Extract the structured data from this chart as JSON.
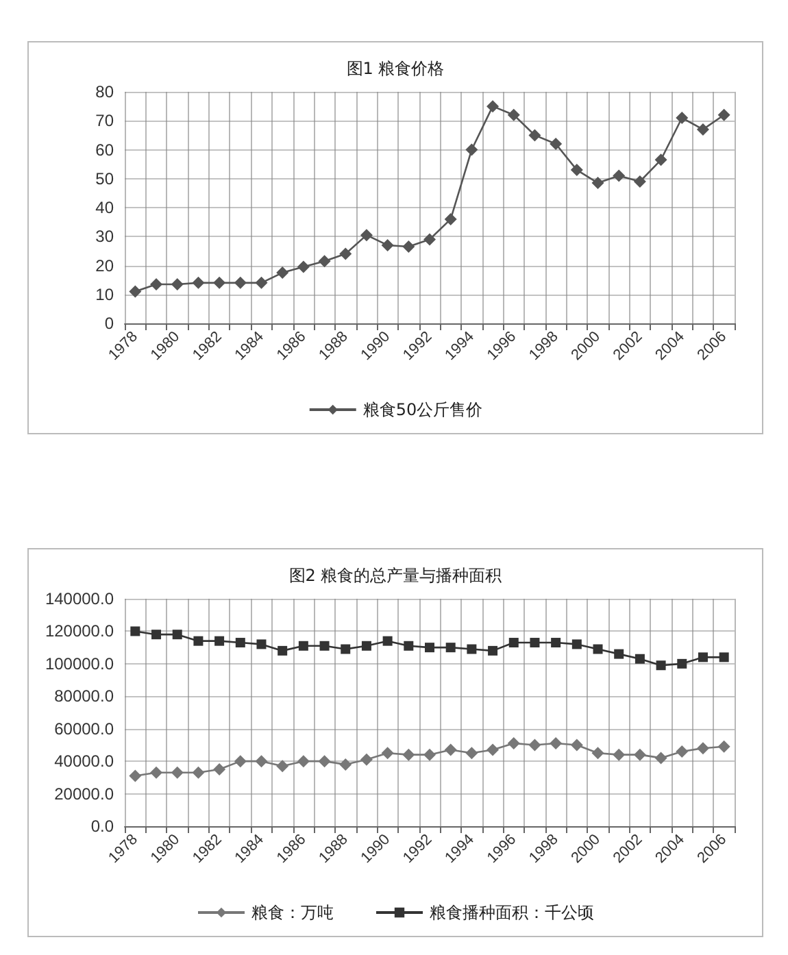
{
  "chart_data": [
    {
      "type": "line",
      "title": "图1 粮食价格",
      "categories": [
        "1978",
        null,
        "1980",
        null,
        "1982",
        null,
        "1984",
        null,
        "1986",
        null,
        "1988",
        null,
        "1990",
        null,
        "1992",
        null,
        "1994",
        null,
        "1996",
        null,
        "1998",
        null,
        "2000",
        null,
        "2002",
        null,
        "2004",
        null,
        "2006"
      ],
      "series": [
        {
          "name": "粮食50公斤售价",
          "color": "#555555",
          "marker": "diamond",
          "values": [
            11,
            13.5,
            13.5,
            14,
            14,
            14,
            14,
            17.5,
            19.5,
            21.5,
            24,
            30.5,
            27,
            26.5,
            29,
            36,
            60,
            75,
            72,
            65,
            62,
            53,
            48.5,
            51,
            49,
            56.5,
            71,
            67,
            72
          ]
        }
      ],
      "ylim": [
        0,
        80
      ],
      "yticks": [
        0,
        10,
        20,
        30,
        40,
        50,
        60,
        70,
        80
      ],
      "grid": true,
      "legend": "bottom"
    },
    {
      "type": "line",
      "title": "图2 粮食的总产量与播种面积",
      "categories": [
        "1978",
        null,
        "1980",
        null,
        "1982",
        null,
        "1984",
        null,
        "1986",
        null,
        "1988",
        null,
        "1990",
        null,
        "1992",
        null,
        "1994",
        null,
        "1996",
        null,
        "1998",
        null,
        "2000",
        null,
        "2002",
        null,
        "2004",
        null,
        "2006"
      ],
      "series": [
        {
          "name": "粮食：万吨",
          "color": "#777777",
          "marker": "diamond",
          "values": [
            31000,
            33000,
            33000,
            33000,
            35000,
            40000,
            40000,
            37000,
            40000,
            40000,
            38000,
            41000,
            45000,
            44000,
            44000,
            47000,
            45000,
            47000,
            51000,
            50000,
            51000,
            50000,
            45000,
            44000,
            44000,
            42000,
            46000,
            48000,
            49000
          ]
        },
        {
          "name": "粮食播种面积：千公顷",
          "color": "#333333",
          "marker": "square",
          "values": [
            120000,
            118000,
            118000,
            114000,
            114000,
            113000,
            112000,
            108000,
            111000,
            111000,
            109000,
            111000,
            114000,
            111000,
            110000,
            110000,
            109000,
            108000,
            113000,
            113000,
            113000,
            112000,
            109000,
            106000,
            103000,
            99000,
            100000,
            104000,
            104000
          ]
        }
      ],
      "ylim": [
        0,
        140000
      ],
      "yticks": [
        {
          "value": 0,
          "label": "0.0"
        },
        {
          "value": 20000,
          "label": "20000.0"
        },
        {
          "value": 40000,
          "label": "40000.0"
        },
        {
          "value": 60000,
          "label": "60000.0"
        },
        {
          "value": 80000,
          "label": "80000.0"
        },
        {
          "value": 100000,
          "label": "100000.0"
        },
        {
          "value": 120000,
          "label": "120000.0"
        },
        {
          "value": 140000,
          "label": "140000.0"
        }
      ],
      "grid": true,
      "legend": "bottom"
    }
  ]
}
